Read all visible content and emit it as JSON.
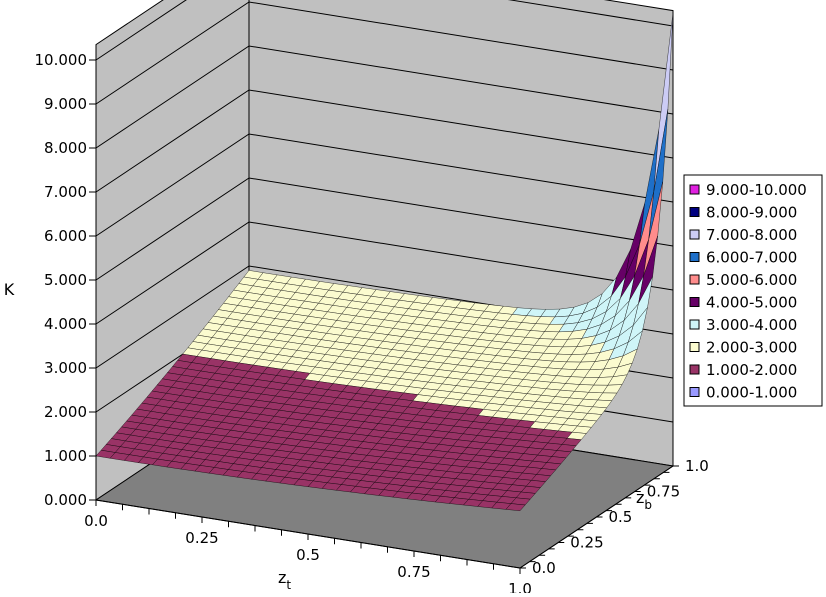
{
  "chart_data": {
    "type": "surface",
    "zlabel": "K",
    "xlabel": {
      "main": "z",
      "sub": "t"
    },
    "ylabel": {
      "main": "z",
      "sub": "b"
    },
    "x_ticks": [
      "0.0",
      "0.25",
      "0.5",
      "0.75",
      "1.0"
    ],
    "y_ticks": [
      "0.0",
      "0.25",
      "0.5",
      "0.75",
      "1.0"
    ],
    "z_ticks": [
      "0.000",
      "1.000",
      "2.000",
      "3.000",
      "4.000",
      "5.000",
      "6.000",
      "7.000",
      "8.000",
      "9.000",
      "10.000"
    ],
    "xlim": [
      0,
      1
    ],
    "ylim": [
      0,
      1
    ],
    "zlim": [
      0,
      10
    ],
    "grid": true,
    "legend_position": "right",
    "legend": [
      {
        "label": "9.000-10.000",
        "color": "#e020e0"
      },
      {
        "label": "8.000-9.000",
        "color": "#000080"
      },
      {
        "label": "7.000-8.000",
        "color": "#ccccf5"
      },
      {
        "label": "6.000-7.000",
        "color": "#1e6fc8"
      },
      {
        "label": "5.000-6.000",
        "color": "#ff8c8c"
      },
      {
        "label": "4.000-5.000",
        "color": "#660066"
      },
      {
        "label": "3.000-4.000",
        "color": "#cff5f8"
      },
      {
        "label": "2.000-3.000",
        "color": "#fbfbcf"
      },
      {
        "label": "1.000-2.000",
        "color": "#993366"
      },
      {
        "label": "0.000-1.000",
        "color": "#9999ff"
      }
    ],
    "surface_samples": [
      {
        "zt": 0.0,
        "zb": 0.0,
        "K": 1.0
      },
      {
        "zt": 1.0,
        "zb": 0.0,
        "K": 1.0
      },
      {
        "zt": 0.0,
        "zb": 1.0,
        "K": 3.0
      },
      {
        "zt": 0.5,
        "zb": 0.5,
        "K": 1.9
      },
      {
        "zt": 1.0,
        "zb": 0.5,
        "K": 2.6
      },
      {
        "zt": 1.0,
        "zb": 0.75,
        "K": 3.5
      },
      {
        "zt": 1.0,
        "zb": 1.0,
        "K": 10.0
      }
    ]
  }
}
